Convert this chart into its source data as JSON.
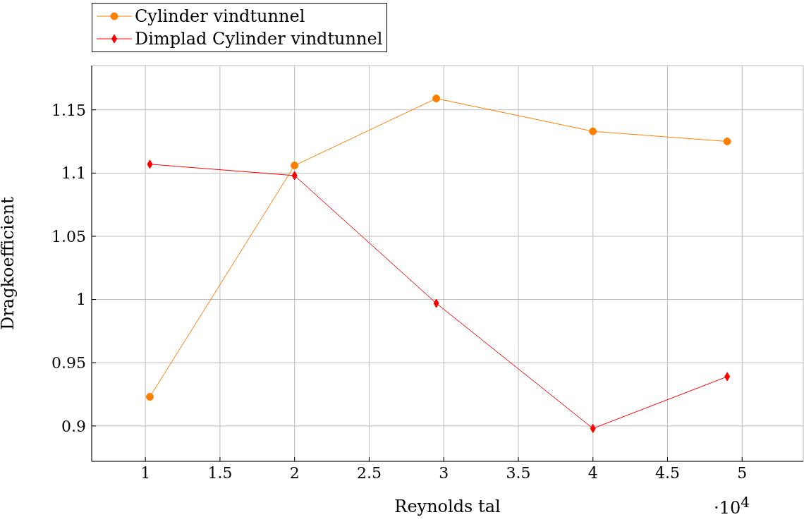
{
  "chart_data": {
    "type": "line",
    "xlabel": "Reynolds tal",
    "ylabel": "Dragkoefficient",
    "annotations": [
      "·10$^{4}$"
    ],
    "xlim": [
      0.64,
      5.41
    ],
    "xticks": [
      1,
      1.5,
      2,
      2.5,
      3,
      3.5,
      4,
      4.5,
      5
    ],
    "ylim": [
      0.872,
      1.185
    ],
    "yticks": [
      0.9,
      0.95,
      1,
      1.05,
      1.1,
      1.15
    ],
    "grid": true,
    "legend": "top left",
    "line_style": "solid",
    "series": [
      {
        "name": "Cylinder vindtunnel",
        "color": "#ff8000",
        "marker": "circle",
        "x": [
          1.03,
          2.0,
          2.95,
          4.0,
          4.9
        ],
        "values": [
          0.923,
          1.106,
          1.159,
          1.133,
          1.125
        ]
      },
      {
        "name": "Dimplad Cylinder vindtunnel",
        "color": "#ff0000",
        "marker": "diamond",
        "x": [
          1.03,
          2.0,
          2.95,
          4.0,
          4.9
        ],
        "values": [
          1.107,
          1.098,
          0.997,
          0.898,
          0.939
        ]
      }
    ]
  }
}
